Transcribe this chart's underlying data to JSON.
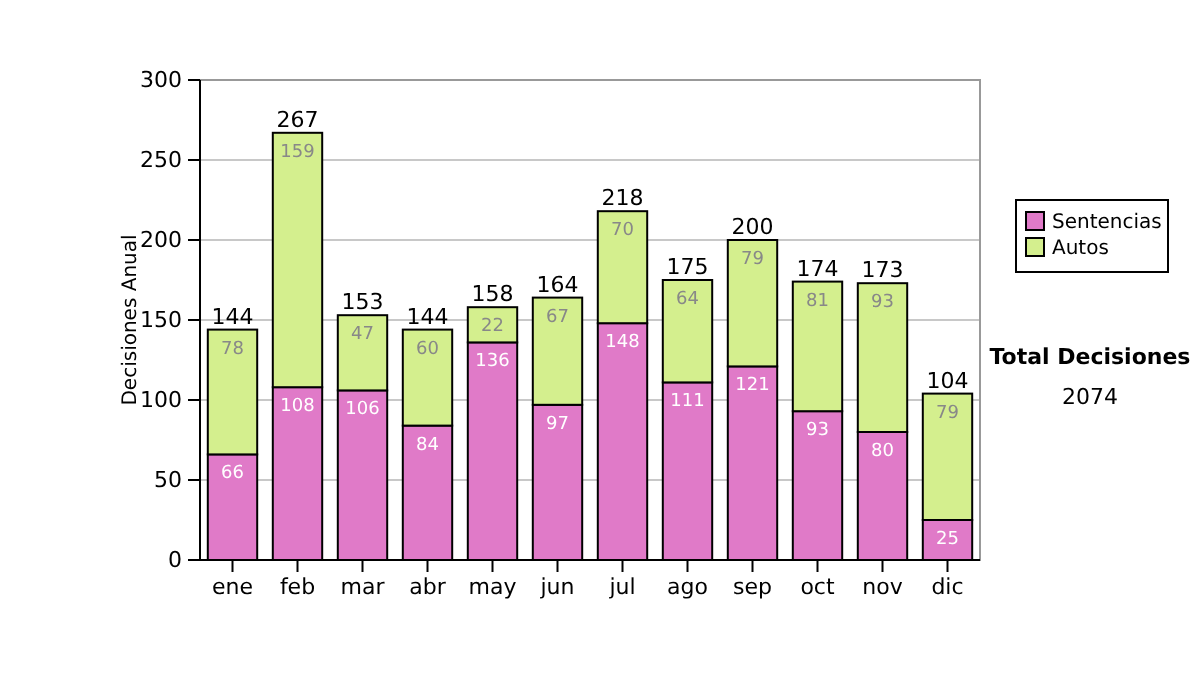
{
  "chart_data": {
    "type": "bar",
    "stacked": true,
    "ylabel": "Decisiones Anual",
    "categories": [
      "ene",
      "feb",
      "mar",
      "abr",
      "may",
      "jun",
      "jul",
      "ago",
      "sep",
      "oct",
      "nov",
      "dic"
    ],
    "series": [
      {
        "name": "Sentencias",
        "color": "#e07ac8",
        "values": [
          66,
          108,
          106,
          84,
          136,
          97,
          148,
          111,
          121,
          93,
          80,
          25
        ]
      },
      {
        "name": "Autos",
        "color": "#d4ef8e",
        "values": [
          78,
          159,
          47,
          60,
          22,
          67,
          70,
          64,
          79,
          81,
          93,
          79
        ]
      }
    ],
    "ylim": [
      0,
      300
    ],
    "yticks": [
      0,
      50,
      100,
      150,
      200,
      250,
      300
    ],
    "grid": "y",
    "legend": "right",
    "data_labels": true,
    "totals": [
      "144",
      "267",
      "153",
      "144",
      "158",
      "164",
      "218",
      "175",
      "200",
      "174",
      "173",
      "104"
    ],
    "annotations": [
      "Total Decisiones",
      "2074"
    ]
  }
}
